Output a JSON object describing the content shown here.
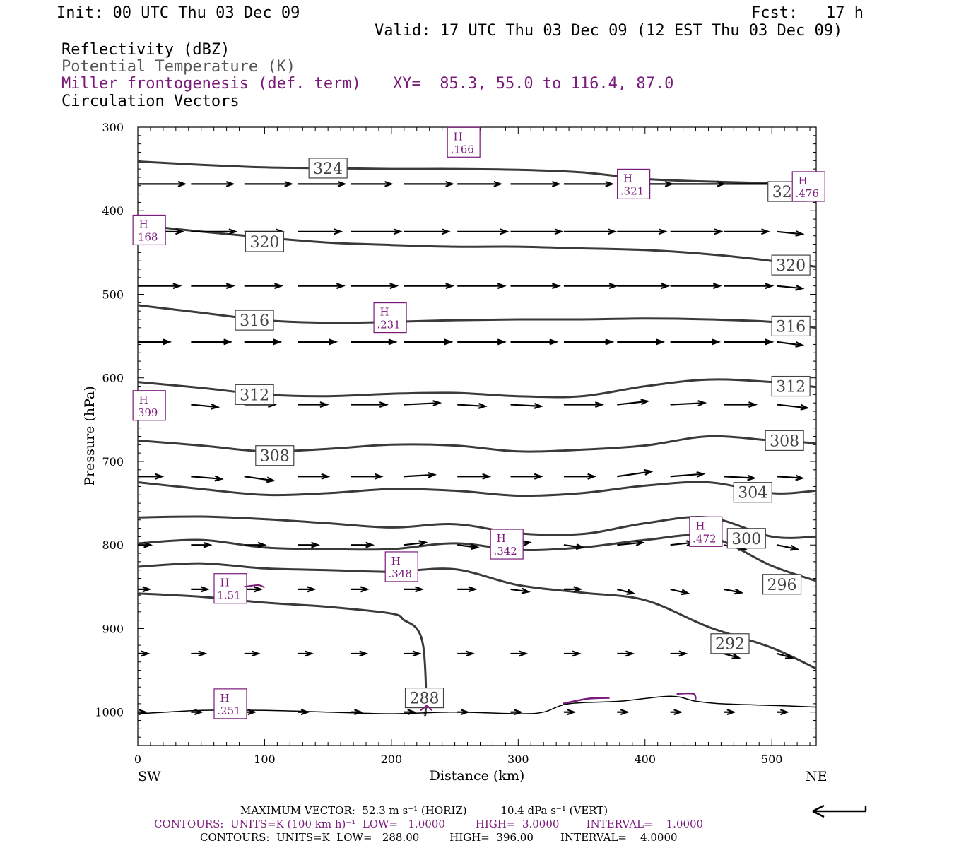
{
  "header": {
    "init": "Init: 00 UTC Thu 03 Dec 09",
    "fcst": "Fcst:   17 h",
    "valid": "Valid: 17 UTC Thu 03 Dec 09 (12 EST Thu 03 Dec 09)",
    "fields": [
      "Reflectivity (dBZ)",
      "Potential Temperature (K)",
      "Miller frontogenesis (def. term)",
      "Circulation Vectors"
    ],
    "xy": "XY=  85.3, 55.0 to 116.4, 87.0"
  },
  "colors": {
    "theta": "#3a3a3a",
    "fronto": "#7a1a7a",
    "vector": "#000000",
    "surface": "#000000"
  },
  "chart_data": {
    "type": "line",
    "xlabel": "Distance (km)",
    "ylabel": "Pressure (hPa)",
    "xlim": [
      0,
      535
    ],
    "ylim": [
      1040,
      300
    ],
    "xticks": [
      0,
      100,
      200,
      300,
      400,
      500
    ],
    "yticks": [
      300,
      400,
      500,
      600,
      700,
      800,
      900,
      1000
    ],
    "endpoints": {
      "left": "SW",
      "right": "NE"
    },
    "theta_contours": [
      {
        "value": 324,
        "label": "324",
        "x": [
          0,
          50,
          100,
          150,
          200,
          250,
          300,
          350,
          400,
          450,
          500,
          535
        ],
        "p": [
          341,
          345,
          348,
          349,
          350,
          350,
          351,
          354,
          362,
          365,
          367,
          369
        ],
        "labels_at": [
          [
            150,
            349
          ],
          [
            512,
            377
          ]
        ]
      },
      {
        "value": 320,
        "label": "320",
        "x": [
          0,
          50,
          100,
          150,
          200,
          250,
          300,
          350,
          400,
          450,
          500,
          535
        ],
        "p": [
          417,
          425,
          432,
          438,
          441,
          443,
          443,
          445,
          447,
          452,
          460,
          467
        ],
        "labels_at": [
          [
            100,
            437
          ],
          [
            515,
            465
          ]
        ]
      },
      {
        "value": 316,
        "label": "316",
        "x": [
          0,
          50,
          100,
          150,
          200,
          250,
          300,
          350,
          400,
          450,
          500,
          535
        ],
        "p": [
          513,
          522,
          531,
          534,
          533,
          531,
          530,
          530,
          529,
          530,
          533,
          540
        ],
        "labels_at": [
          [
            92,
            531
          ],
          [
            515,
            538
          ]
        ]
      },
      {
        "value": 312,
        "label": "312",
        "x": [
          0,
          50,
          100,
          150,
          200,
          250,
          300,
          350,
          400,
          450,
          500,
          535
        ],
        "p": [
          605,
          612,
          620,
          622,
          619,
          618,
          622,
          622,
          610,
          602,
          605,
          611
        ],
        "labels_at": [
          [
            92,
            620
          ],
          [
            515,
            610
          ]
        ]
      },
      {
        "value": 308,
        "label": "308",
        "x": [
          0,
          50,
          100,
          150,
          200,
          250,
          300,
          350,
          400,
          450,
          500,
          535
        ],
        "p": [
          675,
          681,
          688,
          685,
          680,
          681,
          688,
          686,
          681,
          670,
          675,
          678
        ],
        "labels_at": [
          [
            108,
            693
          ],
          [
            510,
            675
          ]
        ]
      },
      {
        "value": 304,
        "label": "304",
        "x": [
          0,
          50,
          100,
          150,
          200,
          250,
          300,
          350,
          400,
          450,
          500,
          535
        ],
        "p": [
          725,
          733,
          740,
          738,
          733,
          735,
          741,
          738,
          729,
          725,
          738,
          735
        ],
        "labels_at": [
          [
            485,
            737
          ]
        ]
      },
      {
        "value": 300,
        "label": "300",
        "x": [
          0,
          50,
          100,
          150,
          200,
          250,
          300,
          350,
          400,
          450,
          500,
          535
        ],
        "p": [
          767,
          766,
          769,
          774,
          779,
          775,
          786,
          787,
          774,
          767,
          790,
          790
        ],
        "labels_at": [
          [
            480,
            792
          ]
        ]
      },
      {
        "value": 296,
        "label": "296",
        "x": [
          0,
          50,
          100,
          150,
          200,
          250,
          300,
          350,
          400,
          450,
          500,
          535
        ],
        "p": [
          798,
          794,
          803,
          805,
          805,
          798,
          806,
          803,
          794,
          790,
          825,
          843
        ],
        "labels_at": [
          [
            508,
            847
          ]
        ]
      },
      {
        "value": 292,
        "label": "292",
        "x": [
          0,
          50,
          100,
          150,
          200,
          250,
          300,
          350,
          400,
          450,
          500,
          535
        ],
        "p": [
          826,
          822,
          828,
          830,
          832,
          829,
          848,
          857,
          866,
          898,
          923,
          948
        ],
        "labels_at": [
          [
            467,
            918
          ]
        ]
      },
      {
        "value": 288,
        "label": "288",
        "x": [
          0,
          50,
          100,
          150,
          200,
          210,
          220,
          225,
          227,
          227,
          226
        ],
        "p": [
          858,
          862,
          869,
          874,
          882,
          890,
          900,
          920,
          960,
          1000,
          1002
        ],
        "labels_at": [
          [
            226,
            983
          ]
        ]
      }
    ],
    "fronto_maxima": [
      {
        "label": "H",
        "value": ".166",
        "x": 257,
        "p": 318
      },
      {
        "label": "H",
        "value": ".321",
        "x": 391,
        "p": 368
      },
      {
        "label": "H",
        "value": ".476",
        "x": 529,
        "p": 371
      },
      {
        "label": "H",
        "value": "168",
        "x": 9,
        "p": 423
      },
      {
        "label": "H",
        "value": ".231",
        "x": 199,
        "p": 528
      },
      {
        "label": "H",
        "value": "399",
        "x": 9,
        "p": 633
      },
      {
        "label": "H",
        "value": ".342",
        "x": 291,
        "p": 799
      },
      {
        "label": "H",
        "value": ".472",
        "x": 448,
        "p": 784
      },
      {
        "label": "H",
        "value": ".348",
        "x": 208,
        "p": 826
      },
      {
        "label": "H",
        "value": "1.51",
        "x": 73,
        "p": 852
      },
      {
        "label": "H",
        "value": ".251",
        "x": 73,
        "p": 990
      }
    ],
    "vector_levels": [
      368,
      425,
      490,
      557,
      632,
      718,
      800,
      853,
      930,
      1000
    ],
    "vector_x": [
      0,
      42,
      84,
      126,
      168,
      210,
      252,
      294,
      336,
      378,
      420,
      462,
      504
    ],
    "vector_dx": [
      [
        37,
        33,
        37,
        37,
        32,
        38,
        34,
        38,
        38,
        43,
        42,
        41,
        20
      ],
      [
        35,
        35,
        30,
        34,
        39,
        35,
        39,
        40,
        40,
        38,
        40,
        35,
        20
      ],
      [
        33,
        33,
        29,
        36,
        36,
        38,
        37,
        38,
        41,
        40,
        39,
        38,
        20
      ],
      [
        25,
        31,
        28,
        30,
        35,
        37,
        37,
        36,
        38,
        36,
        38,
        38,
        20
      ],
      [
        20,
        21,
        24,
        23,
        28,
        28,
        22,
        24,
        30,
        24,
        27,
        25,
        24
      ],
      [
        19,
        24,
        23,
        24,
        24,
        24,
        25,
        24,
        24,
        27,
        26,
        24,
        20
      ],
      [
        10,
        15,
        16,
        16,
        17,
        17,
        16,
        15,
        15,
        20,
        18,
        17,
        16
      ],
      [
        9,
        13,
        13,
        13,
        13,
        14,
        14,
        14,
        13,
        13,
        14,
        14,
        13
      ],
      [
        8,
        11,
        11,
        11,
        12,
        12,
        12,
        12,
        12,
        12,
        12,
        12,
        12
      ],
      [
        6,
        8,
        8,
        8,
        8,
        8,
        8,
        8,
        8,
        8,
        8,
        8,
        8
      ]
    ],
    "vector_dp": [
      [
        0,
        0,
        0,
        0,
        0,
        0,
        0,
        0,
        0,
        0,
        0,
        0,
        0
      ],
      [
        0,
        0,
        0,
        0,
        0,
        0,
        0,
        0,
        0,
        0,
        0,
        0,
        3
      ],
      [
        0,
        0,
        0,
        0,
        0,
        0,
        0,
        0,
        0,
        0,
        0,
        0,
        3
      ],
      [
        0,
        0,
        0,
        0,
        0,
        0,
        0,
        0,
        0,
        0,
        0,
        0,
        4
      ],
      [
        0,
        3,
        0,
        0,
        0,
        -2,
        2,
        2,
        0,
        -4,
        -2,
        0,
        4
      ],
      [
        0,
        3,
        5,
        0,
        0,
        -2,
        0,
        0,
        0,
        -6,
        -3,
        2,
        2
      ],
      [
        0,
        0,
        0,
        0,
        0,
        -3,
        3,
        -3,
        3,
        -3,
        -3,
        5,
        5
      ],
      [
        0,
        0,
        0,
        0,
        0,
        0,
        0,
        3,
        0,
        5,
        5,
        4,
        0
      ],
      [
        0,
        0,
        0,
        0,
        0,
        0,
        0,
        0,
        0,
        0,
        0,
        5,
        5
      ],
      [
        0,
        0,
        0,
        0,
        0,
        0,
        0,
        0,
        0,
        0,
        0,
        0,
        0
      ]
    ],
    "surface": {
      "x": [
        0,
        50,
        100,
        150,
        200,
        250,
        300,
        320,
        340,
        380,
        420,
        440,
        460,
        500,
        535
      ],
      "p": [
        1002,
        998,
        998,
        1000,
        1002,
        1000,
        1002,
        1000,
        990,
        987,
        981,
        987,
        990,
        992,
        994
      ]
    }
  },
  "footer": {
    "max_vector": "MAXIMUM VECTOR:  52.3 m s⁻¹ (HORIZ)          10.4 dPa s⁻¹ (VERT)",
    "contours_fronto": "CONTOURS:  UNITS=K (100 km h)⁻¹  LOW=   1.0000         HIGH=  3.0000        INTERVAL=    1.0000",
    "contours_theta": "CONTOURS:  UNITS=K  LOW=   288.00         HIGH=  396.00        INTERVAL=    4.0000"
  }
}
